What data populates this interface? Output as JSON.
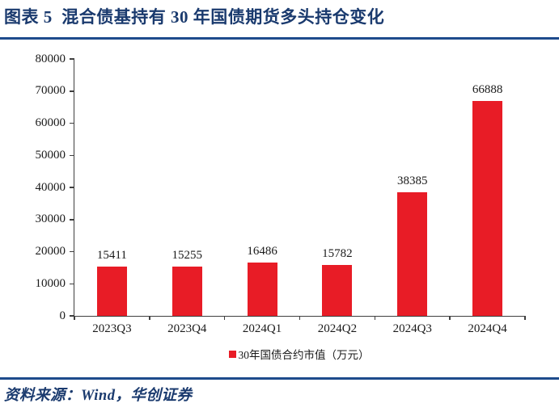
{
  "page": {
    "title": "图表 5  混合债基持有 30 年国债期货多头持仓变化",
    "source_label": "资料来源：Wind，华创证券"
  },
  "colors": {
    "title_navy": "#1A3A6E",
    "rule_navy": "#1E4B8C",
    "bar_red": "#E81C26",
    "axis": "#3F3F3F",
    "tick_text": "#1A1A1A"
  },
  "chart_data": {
    "type": "bar",
    "title": "",
    "categories": [
      "2023Q3",
      "2023Q4",
      "2024Q1",
      "2024Q2",
      "2024Q3",
      "2024Q4"
    ],
    "values": [
      15411,
      15255,
      16486,
      15782,
      38385,
      66888
    ],
    "bar_labels": [
      15411,
      15255,
      16486,
      15782,
      38385,
      66888
    ],
    "legend": [
      "30年国债合约市值（万元）"
    ],
    "legend_position": "bottom-center",
    "xlabel": "",
    "ylabel": "",
    "ylim": [
      0,
      80000
    ],
    "ytick_interval": 10000,
    "yticks": [
      0,
      10000,
      20000,
      30000,
      40000,
      50000,
      60000,
      70000,
      80000
    ],
    "grid": false,
    "bar_color": "#E81C26"
  }
}
